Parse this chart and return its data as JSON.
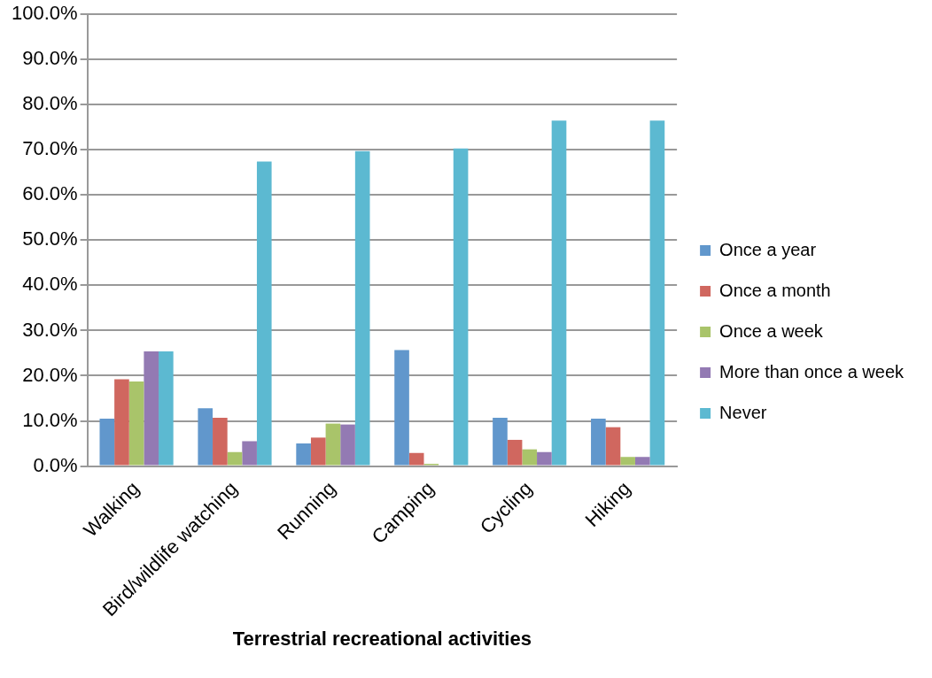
{
  "chart_data": {
    "type": "bar",
    "xlabel": "Terrestrial recreational activities",
    "categories": [
      "Walking",
      "Bird/wildlife watching",
      "Running",
      "Camping",
      "Cycling",
      "Hiking"
    ],
    "series": [
      {
        "name": "Once a year",
        "color": "#6197cc",
        "values": [
          10.5,
          12.8,
          5.0,
          25.7,
          10.7,
          10.5
        ]
      },
      {
        "name": "Once a month",
        "color": "#d0675f",
        "values": [
          19.2,
          10.7,
          6.3,
          2.9,
          5.8,
          8.6
        ]
      },
      {
        "name": "Once a week",
        "color": "#a9c46a",
        "values": [
          18.7,
          3.1,
          9.4,
          0.5,
          3.7,
          2.0
        ]
      },
      {
        "name": "More than once a week",
        "color": "#937ab3",
        "values": [
          25.4,
          5.5,
          9.2,
          0,
          3.1,
          2.0
        ]
      },
      {
        "name": "Never",
        "color": "#5cb9d1",
        "values": [
          25.4,
          67.4,
          69.7,
          70.3,
          76.5,
          76.5
        ]
      }
    ],
    "ylim": [
      0,
      100
    ],
    "yticks": [
      {
        "value": 0,
        "label": "0.0%"
      },
      {
        "value": 10,
        "label": "10.0%"
      },
      {
        "value": 20,
        "label": "20.0%"
      },
      {
        "value": 30,
        "label": "30.0%"
      },
      {
        "value": 40,
        "label": "40.0%"
      },
      {
        "value": 50,
        "label": "50.0%"
      },
      {
        "value": 60,
        "label": "60.0%"
      },
      {
        "value": 70,
        "label": "70.0%"
      },
      {
        "value": 80,
        "label": "80.0%"
      },
      {
        "value": 90,
        "label": "90.0%"
      },
      {
        "value": 100,
        "label": "100.0%"
      }
    ],
    "grid": "y",
    "legend": "right"
  }
}
